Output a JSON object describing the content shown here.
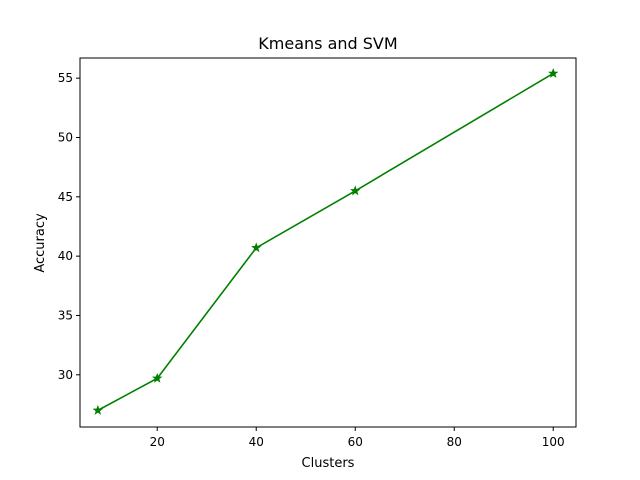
{
  "chart_data": {
    "type": "line",
    "title": "Kmeans and SVM",
    "xlabel": "Clusters",
    "ylabel": "Accuracy",
    "xlim": [
      4.4,
      104.6
    ],
    "ylim": [
      25.6,
      56.7
    ],
    "xticks": [
      20,
      40,
      60,
      80,
      100
    ],
    "yticks": [
      30,
      35,
      40,
      45,
      50,
      55
    ],
    "grid": false,
    "series": [
      {
        "color": "#008000",
        "marker": "star",
        "x": [
          8,
          20,
          40,
          60,
          100
        ],
        "y": [
          27.0,
          29.7,
          40.7,
          45.5,
          55.4
        ]
      }
    ]
  }
}
